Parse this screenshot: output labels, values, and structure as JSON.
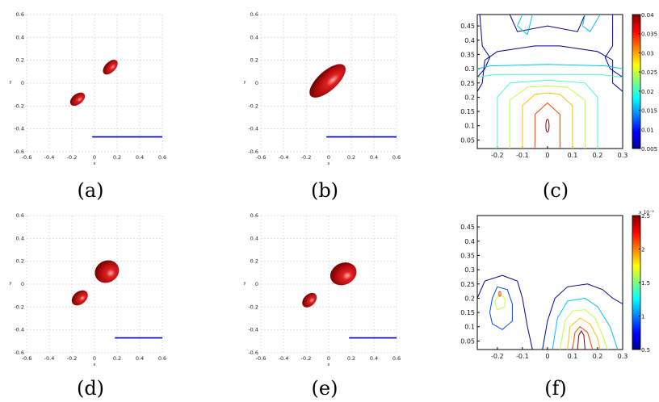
{
  "chart_data": [
    {
      "type": "scatter",
      "caption": "(a)",
      "xlabel": "x",
      "ylabel": "y",
      "xlim": [
        -0.6,
        0.6
      ],
      "ylim": [
        -0.6,
        0.6
      ],
      "x_ticks": [
        "-0.6",
        "-0.4",
        "-0.2",
        "0",
        "0.2",
        "0.4",
        "0.6"
      ],
      "y_ticks": [
        "0.6",
        "0.4",
        "0.2",
        "0",
        "-0.2",
        "-0.4",
        "-0.6"
      ],
      "grid": true,
      "time_bar": {
        "x": [
          -0.02,
          0.6
        ],
        "y": -0.47,
        "color": "#0000cc"
      },
      "blobs": [
        {
          "cx": -0.15,
          "cy": -0.14,
          "rx": 0.075,
          "ry": 0.045,
          "angle": -38,
          "color": "#b01010"
        },
        {
          "cx": 0.14,
          "cy": 0.14,
          "rx": 0.08,
          "ry": 0.045,
          "angle": -45,
          "color": "#b01010"
        }
      ]
    },
    {
      "type": "scatter",
      "caption": "(b)",
      "xlabel": "x",
      "ylabel": "y",
      "xlim": [
        -0.6,
        0.6
      ],
      "ylim": [
        -0.6,
        0.6
      ],
      "x_ticks": [
        "-0.6",
        "-0.4",
        "-0.2",
        "0",
        "0.2",
        "0.4",
        "0.6"
      ],
      "y_ticks": [
        "0.6",
        "0.4",
        "0.2",
        "0",
        "-0.2",
        "-0.4",
        "-0.6"
      ],
      "grid": true,
      "time_bar": {
        "x": [
          -0.02,
          0.6
        ],
        "y": -0.47,
        "color": "#0000cc"
      },
      "blobs": [
        {
          "cx": -0.01,
          "cy": 0.02,
          "rx": 0.2,
          "ry": 0.085,
          "angle": -42,
          "color": "#b01010"
        }
      ]
    },
    {
      "type": "contour",
      "caption": "(c)",
      "x_ticks": [
        "-0.2",
        "-0.1",
        "0",
        "0.1",
        "0.2",
        "0.3"
      ],
      "y_ticks": [
        "0.45",
        "0.4",
        "0.35",
        "0.3",
        "0.25",
        "0.2",
        "0.15",
        "0.1",
        "0.05"
      ],
      "xlim": [
        -0.28,
        0.3
      ],
      "ylim": [
        0.02,
        0.49
      ],
      "colorbar": {
        "ticks": [
          "0.04",
          "0.035",
          "0.03",
          "0.025",
          "0.02",
          "0.015",
          "0.01",
          "0.005"
        ],
        "scale_label": ""
      },
      "levels_colors": [
        "#00008f",
        "#0040ff",
        "#00c0ff",
        "#40ffbf",
        "#bfff40",
        "#ffc000",
        "#ff4000",
        "#8f0000"
      ]
    },
    {
      "type": "scatter",
      "caption": "(d)",
      "xlabel": "x",
      "ylabel": "y",
      "xlim": [
        -0.6,
        0.6
      ],
      "ylim": [
        -0.6,
        0.6
      ],
      "x_ticks": [
        "-0.6",
        "-0.4",
        "-0.2",
        "0",
        "0.2",
        "0.4",
        "0.6"
      ],
      "y_ticks": [
        "0.6",
        "0.4",
        "0.2",
        "0",
        "-0.2",
        "-0.4",
        "-0.6"
      ],
      "grid": true,
      "time_bar": {
        "x": [
          0.18,
          0.6
        ],
        "y": -0.47,
        "color": "#0000cc"
      },
      "blobs": [
        {
          "cx": -0.13,
          "cy": -0.12,
          "rx": 0.08,
          "ry": 0.055,
          "angle": -40,
          "color": "#b01010"
        },
        {
          "cx": 0.11,
          "cy": 0.11,
          "rx": 0.11,
          "ry": 0.095,
          "angle": -30,
          "color": "#b01010"
        }
      ]
    },
    {
      "type": "scatter",
      "caption": "(e)",
      "xlabel": "x",
      "ylabel": "y",
      "xlim": [
        -0.6,
        0.6
      ],
      "ylim": [
        -0.6,
        0.6
      ],
      "x_ticks": [
        "-0.6",
        "-0.4",
        "-0.2",
        "0",
        "0.2",
        "0.4",
        "0.6"
      ],
      "y_ticks": [
        "0.6",
        "0.4",
        "0.2",
        "0",
        "-0.2",
        "-0.4",
        "-0.6"
      ],
      "grid": true,
      "time_bar": {
        "x": [
          0.18,
          0.6
        ],
        "y": -0.47,
        "color": "#0000cc"
      },
      "blobs": [
        {
          "cx": -0.17,
          "cy": -0.14,
          "rx": 0.075,
          "ry": 0.05,
          "angle": -45,
          "color": "#b01010"
        },
        {
          "cx": 0.13,
          "cy": 0.09,
          "rx": 0.12,
          "ry": 0.095,
          "angle": -25,
          "color": "#b01010"
        }
      ]
    },
    {
      "type": "contour",
      "caption": "(f)",
      "x_ticks": [
        "-0.2",
        "-0.1",
        "0",
        "0.1",
        "0.2",
        "0.3"
      ],
      "y_ticks": [
        "0.45",
        "0.4",
        "0.35",
        "0.3",
        "0.25",
        "0.2",
        "0.15",
        "0.1",
        "0.05"
      ],
      "xlim": [
        -0.28,
        0.3
      ],
      "ylim": [
        0.02,
        0.49
      ],
      "colorbar": {
        "ticks": [
          "2.5",
          "2",
          "1.5",
          "1",
          "0.5"
        ],
        "scale_label": "x 10⁻³"
      },
      "levels_colors": [
        "#00008f",
        "#0040ff",
        "#00c0ff",
        "#40ffbf",
        "#bfff40",
        "#ffc000",
        "#ff4000",
        "#8f0000"
      ]
    }
  ]
}
